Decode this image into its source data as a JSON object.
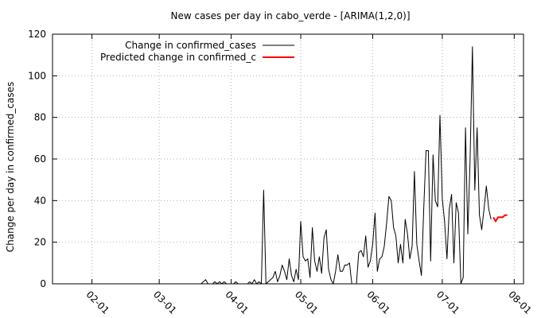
{
  "chart_data": {
    "type": "line",
    "title": "New cases per day in cabo_verde -  [ARIMA(1,2,0)]",
    "xlabel": "",
    "ylabel": "Change per day in confirmed_cases",
    "ylim": [
      0,
      120
    ],
    "xlim": [
      "2020-01-15",
      "2020-08-05"
    ],
    "y_ticks": [
      0,
      20,
      40,
      60,
      80,
      100,
      120
    ],
    "x_ticks": [
      {
        "date": "2020-02-01",
        "label": "02-01"
      },
      {
        "date": "2020-03-01",
        "label": "03-01"
      },
      {
        "date": "2020-04-01",
        "label": "04-01"
      },
      {
        "date": "2020-05-01",
        "label": "05-01"
      },
      {
        "date": "2020-06-01",
        "label": "06-01"
      },
      {
        "date": "2020-07-01",
        "label": "07-01"
      },
      {
        "date": "2020-08-01",
        "label": "08-01"
      }
    ],
    "grid": true,
    "legend_position": "top-left",
    "series": [
      {
        "name": "Change in confirmed_cases",
        "color": "#000000",
        "points": [
          [
            "2020-01-22",
            0
          ],
          [
            "2020-03-19",
            0
          ],
          [
            "2020-03-20",
            1
          ],
          [
            "2020-03-21",
            2
          ],
          [
            "2020-03-22",
            0
          ],
          [
            "2020-03-24",
            0
          ],
          [
            "2020-03-25",
            1
          ],
          [
            "2020-03-26",
            0
          ],
          [
            "2020-03-27",
            1
          ],
          [
            "2020-03-28",
            0
          ],
          [
            "2020-03-29",
            1
          ],
          [
            "2020-03-30",
            0
          ],
          [
            "2020-04-02",
            0
          ],
          [
            "2020-04-03",
            1
          ],
          [
            "2020-04-04",
            0
          ],
          [
            "2020-04-08",
            0
          ],
          [
            "2020-04-09",
            1
          ],
          [
            "2020-04-10",
            0
          ],
          [
            "2020-04-11",
            2
          ],
          [
            "2020-04-12",
            0
          ],
          [
            "2020-04-13",
            1
          ],
          [
            "2020-04-14",
            0
          ],
          [
            "2020-04-15",
            45
          ],
          [
            "2020-04-16",
            0
          ],
          [
            "2020-04-17",
            1
          ],
          [
            "2020-04-18",
            2
          ],
          [
            "2020-04-19",
            3
          ],
          [
            "2020-04-20",
            6
          ],
          [
            "2020-04-21",
            1
          ],
          [
            "2020-04-22",
            4
          ],
          [
            "2020-04-23",
            9
          ],
          [
            "2020-04-24",
            6
          ],
          [
            "2020-04-25",
            2
          ],
          [
            "2020-04-26",
            12
          ],
          [
            "2020-04-27",
            4
          ],
          [
            "2020-04-28",
            1
          ],
          [
            "2020-04-29",
            7
          ],
          [
            "2020-04-30",
            2
          ],
          [
            "2020-05-01",
            30
          ],
          [
            "2020-05-02",
            13
          ],
          [
            "2020-05-03",
            11
          ],
          [
            "2020-05-04",
            12
          ],
          [
            "2020-05-05",
            3
          ],
          [
            "2020-05-06",
            27
          ],
          [
            "2020-05-07",
            11
          ],
          [
            "2020-05-08",
            6
          ],
          [
            "2020-05-09",
            13
          ],
          [
            "2020-05-10",
            5
          ],
          [
            "2020-05-11",
            22
          ],
          [
            "2020-05-12",
            26
          ],
          [
            "2020-05-13",
            7
          ],
          [
            "2020-05-14",
            2
          ],
          [
            "2020-05-15",
            0
          ],
          [
            "2020-05-16",
            6
          ],
          [
            "2020-05-17",
            14
          ],
          [
            "2020-05-18",
            6
          ],
          [
            "2020-05-19",
            6
          ],
          [
            "2020-05-20",
            9
          ],
          [
            "2020-05-21",
            9
          ],
          [
            "2020-05-22",
            10
          ],
          [
            "2020-05-23",
            0
          ],
          [
            "2020-05-24",
            0
          ],
          [
            "2020-05-25",
            0
          ],
          [
            "2020-05-26",
            15
          ],
          [
            "2020-05-27",
            16
          ],
          [
            "2020-05-28",
            13
          ],
          [
            "2020-05-29",
            23
          ],
          [
            "2020-05-30",
            8
          ],
          [
            "2020-05-31",
            11
          ],
          [
            "2020-06-01",
            19
          ],
          [
            "2020-06-02",
            34
          ],
          [
            "2020-06-03",
            6
          ],
          [
            "2020-06-04",
            12
          ],
          [
            "2020-06-05",
            13
          ],
          [
            "2020-06-06",
            18
          ],
          [
            "2020-06-07",
            29
          ],
          [
            "2020-06-08",
            42
          ],
          [
            "2020-06-09",
            40
          ],
          [
            "2020-06-10",
            27
          ],
          [
            "2020-06-11",
            23
          ],
          [
            "2020-06-12",
            10
          ],
          [
            "2020-06-13",
            19
          ],
          [
            "2020-06-14",
            10
          ],
          [
            "2020-06-15",
            31
          ],
          [
            "2020-06-16",
            24
          ],
          [
            "2020-06-17",
            12
          ],
          [
            "2020-06-18",
            18
          ],
          [
            "2020-06-19",
            54
          ],
          [
            "2020-06-20",
            19
          ],
          [
            "2020-06-21",
            11
          ],
          [
            "2020-06-22",
            4
          ],
          [
            "2020-06-23",
            36
          ],
          [
            "2020-06-24",
            64
          ],
          [
            "2020-06-25",
            64
          ],
          [
            "2020-06-26",
            11
          ],
          [
            "2020-06-27",
            62
          ],
          [
            "2020-06-28",
            40
          ],
          [
            "2020-06-29",
            37
          ],
          [
            "2020-06-30",
            81
          ],
          [
            "2020-07-01",
            41
          ],
          [
            "2020-07-02",
            30
          ],
          [
            "2020-07-03",
            12
          ],
          [
            "2020-07-04",
            36
          ],
          [
            "2020-07-05",
            43
          ],
          [
            "2020-07-06",
            10
          ],
          [
            "2020-07-07",
            39
          ],
          [
            "2020-07-08",
            34
          ],
          [
            "2020-07-09",
            0
          ],
          [
            "2020-07-10",
            3
          ],
          [
            "2020-07-11",
            75
          ],
          [
            "2020-07-12",
            24
          ],
          [
            "2020-07-13",
            60
          ],
          [
            "2020-07-14",
            114
          ],
          [
            "2020-07-15",
            45
          ],
          [
            "2020-07-16",
            75
          ],
          [
            "2020-07-17",
            33
          ],
          [
            "2020-07-18",
            26
          ],
          [
            "2020-07-19",
            36
          ],
          [
            "2020-07-20",
            47
          ],
          [
            "2020-07-21",
            36
          ],
          [
            "2020-07-22",
            31
          ]
        ]
      },
      {
        "name": "Predicted change in confirmed_c",
        "color": "#ff0000",
        "points": [
          [
            "2020-07-23",
            32
          ],
          [
            "2020-07-24",
            30
          ],
          [
            "2020-07-25",
            32
          ],
          [
            "2020-07-26",
            32
          ],
          [
            "2020-07-27",
            32
          ],
          [
            "2020-07-28",
            33
          ],
          [
            "2020-07-29",
            33
          ]
        ]
      }
    ]
  }
}
